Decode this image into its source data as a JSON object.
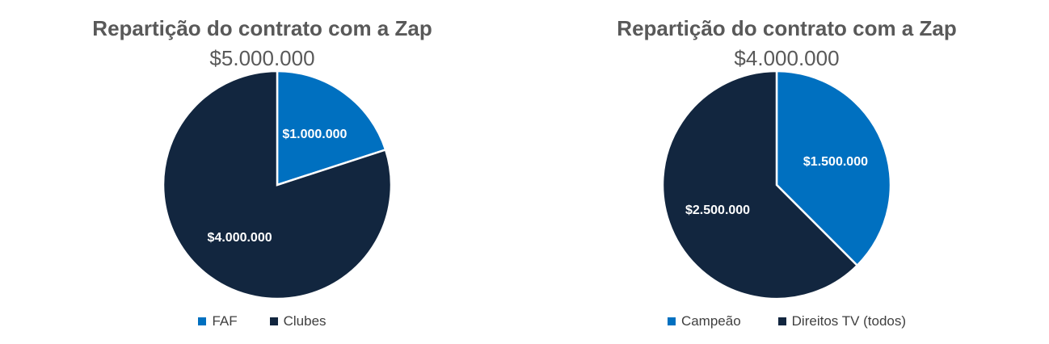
{
  "chart_data": [
    {
      "type": "pie",
      "title": "Repartição do contrato com a Zap",
      "subtitle": "$5.000.000",
      "categories": [
        "FAF",
        "Clubes"
      ],
      "values": [
        1000000,
        4000000
      ],
      "data_labels": [
        "$1.000.000",
        "$4.000.000"
      ],
      "colors": [
        "#0070C0",
        "#12263F"
      ],
      "legend_position": "bottom"
    },
    {
      "type": "pie",
      "title": "Repartição do contrato com a Zap",
      "subtitle": "$4.000.000",
      "categories": [
        "Campeão",
        "Direitos TV (todos)"
      ],
      "values": [
        1500000,
        2500000
      ],
      "data_labels": [
        "$1.500.000",
        "$2.500.000"
      ],
      "colors": [
        "#0070C0",
        "#12263F"
      ],
      "legend_position": "bottom"
    }
  ]
}
